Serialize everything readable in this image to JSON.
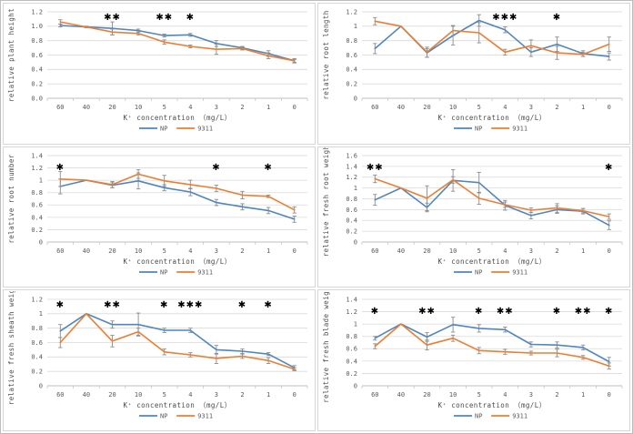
{
  "figure": {
    "x_categories": [
      "60",
      "40",
      "20",
      "10",
      "5",
      "4",
      "3",
      "2",
      "1",
      "0"
    ],
    "xlabel": "K⁺ concentration （mg/L）",
    "legend": [
      {
        "name": "NP",
        "color": "#4e86c0"
      },
      {
        "name": "9311",
        "color": "#ed7d31"
      }
    ],
    "colors": {
      "grid": "#d9d9d9",
      "axis": "#bfbfbf",
      "error": "#8c8c8c",
      "text": "#595959",
      "significance": "#000000"
    }
  },
  "chart_data": [
    {
      "type": "line",
      "ylabel": "relative plant height",
      "ylim": [
        0,
        1.2
      ],
      "ytick_labels": [
        "0.0",
        "0.2",
        "0.4",
        "0.6",
        "0.8",
        "1.0",
        "1.2"
      ],
      "categories": [
        "60",
        "40",
        "20",
        "10",
        "5",
        "4",
        "3",
        "2",
        "1",
        "0"
      ],
      "series": [
        {
          "name": "NP",
          "values": [
            1.01,
            0.99,
            0.97,
            0.94,
            0.87,
            0.88,
            0.76,
            0.7,
            0.62,
            0.52
          ],
          "errors": [
            0.02,
            0.01,
            0.09,
            0.02,
            0.02,
            0.02,
            0.04,
            0.02,
            0.04,
            0.02
          ]
        },
        {
          "name": "9311",
          "values": [
            1.06,
            0.99,
            0.92,
            0.9,
            0.78,
            0.72,
            0.68,
            0.69,
            0.59,
            0.52
          ],
          "errors": [
            0.03,
            0.01,
            0.04,
            0.02,
            0.03,
            0.02,
            0.07,
            0.02,
            0.04,
            0.03
          ]
        }
      ],
      "significance": [
        {
          "category": "20",
          "symbol": "**"
        },
        {
          "category": "5",
          "symbol": "**"
        },
        {
          "category": "4",
          "symbol": "*"
        }
      ]
    },
    {
      "type": "line",
      "ylabel": "relative root length",
      "ylim": [
        0,
        1.2
      ],
      "ytick_labels": [
        "0",
        "0.2",
        "0.4",
        "0.6",
        "0.8",
        "1",
        "1.2"
      ],
      "categories": [
        "60",
        "40",
        "20",
        "10",
        "5",
        "4",
        "3",
        "2",
        "1",
        "0"
      ],
      "series": [
        {
          "name": "NP",
          "values": [
            0.69,
            1.0,
            0.63,
            0.87,
            1.08,
            0.95,
            0.64,
            0.75,
            0.62,
            0.58
          ],
          "errors": [
            0.07,
            0.0,
            0.06,
            0.13,
            0.08,
            0.04,
            0.06,
            0.1,
            0.04,
            0.05
          ]
        },
        {
          "name": "9311",
          "values": [
            1.07,
            1.0,
            0.64,
            0.94,
            0.91,
            0.64,
            0.73,
            0.63,
            0.61,
            0.75
          ],
          "errors": [
            0.05,
            0.0,
            0.07,
            0.07,
            0.14,
            0.04,
            0.08,
            0.09,
            0.03,
            0.1
          ]
        }
      ],
      "significance": [
        {
          "category": "4",
          "symbol": "***"
        },
        {
          "category": "2",
          "symbol": "*"
        }
      ]
    },
    {
      "type": "line",
      "ylabel": "relative root number",
      "ylim": [
        0,
        1.4
      ],
      "ytick_labels": [
        "0",
        "0.2",
        "0.4",
        "0.6",
        "0.8",
        "1",
        "1.2",
        "1.4"
      ],
      "categories": [
        "60",
        "40",
        "20",
        "10",
        "5",
        "4",
        "3",
        "2",
        "1",
        "0"
      ],
      "series": [
        {
          "name": "NP",
          "values": [
            0.9,
            1.0,
            0.92,
            0.99,
            0.88,
            0.81,
            0.64,
            0.57,
            0.51,
            0.37
          ],
          "errors": [
            0.12,
            0.0,
            0.04,
            0.13,
            0.05,
            0.06,
            0.05,
            0.05,
            0.05,
            0.05
          ]
        },
        {
          "name": "9311",
          "values": [
            1.02,
            1.0,
            0.93,
            1.1,
            0.99,
            0.93,
            0.87,
            0.76,
            0.74,
            0.52
          ],
          "errors": [
            0.12,
            0.0,
            0.05,
            0.07,
            0.09,
            0.07,
            0.05,
            0.06,
            0.02,
            0.05
          ]
        }
      ],
      "significance": [
        {
          "category": "60",
          "symbol": "*"
        },
        {
          "category": "3",
          "symbol": "*"
        },
        {
          "category": "1",
          "symbol": "*"
        }
      ]
    },
    {
      "type": "line",
      "ylabel": "relative fresh root weight",
      "ylim": [
        0,
        1.6
      ],
      "ytick_labels": [
        "0",
        "0.2",
        "0.4",
        "0.6",
        "0.8",
        "1",
        "1.2",
        "1.4",
        "1.6"
      ],
      "categories": [
        "60",
        "40",
        "20",
        "10",
        "5",
        "4",
        "3",
        "2",
        "1",
        "0"
      ],
      "series": [
        {
          "name": "NP",
          "values": [
            0.78,
            1.0,
            0.64,
            1.14,
            1.1,
            0.68,
            0.49,
            0.6,
            0.57,
            0.31
          ],
          "errors": [
            0.1,
            0.0,
            0.08,
            0.2,
            0.19,
            0.09,
            0.06,
            0.07,
            0.05,
            0.08
          ]
        },
        {
          "name": "9311",
          "values": [
            1.17,
            1.0,
            0.81,
            1.15,
            0.81,
            0.69,
            0.59,
            0.63,
            0.58,
            0.47
          ],
          "errors": [
            0.07,
            0.0,
            0.23,
            0.06,
            0.11,
            0.05,
            0.04,
            0.08,
            0.04,
            0.05
          ]
        }
      ],
      "significance": [
        {
          "category": "60",
          "symbol": "**"
        },
        {
          "category": "0",
          "symbol": "*"
        }
      ]
    },
    {
      "type": "line",
      "ylabel": "relative fresh sheath weight",
      "ylim": [
        0,
        1.2
      ],
      "ytick_labels": [
        "0",
        "0.2",
        "0.4",
        "0.6",
        "0.8",
        "1",
        "1.2"
      ],
      "categories": [
        "60",
        "40",
        "20",
        "10",
        "5",
        "4",
        "3",
        "2",
        "1",
        "0"
      ],
      "series": [
        {
          "name": "NP",
          "values": [
            0.76,
            1.0,
            0.85,
            0.85,
            0.77,
            0.77,
            0.5,
            0.48,
            0.44,
            0.25
          ],
          "errors": [
            0.09,
            0.0,
            0.05,
            0.16,
            0.03,
            0.03,
            0.06,
            0.03,
            0.02,
            0.03
          ]
        },
        {
          "name": "9311",
          "values": [
            0.6,
            1.0,
            0.62,
            0.75,
            0.47,
            0.43,
            0.38,
            0.41,
            0.35,
            0.23
          ],
          "errors": [
            0.07,
            0.0,
            0.08,
            0.05,
            0.04,
            0.03,
            0.07,
            0.03,
            0.04,
            0.02
          ]
        }
      ],
      "significance": [
        {
          "category": "60",
          "symbol": "*"
        },
        {
          "category": "20",
          "symbol": "**"
        },
        {
          "category": "5",
          "symbol": "*"
        },
        {
          "category": "4",
          "symbol": "***"
        },
        {
          "category": "2",
          "symbol": "*"
        },
        {
          "category": "1",
          "symbol": "*"
        }
      ]
    },
    {
      "type": "line",
      "ylabel": "relative fresh blade weight",
      "ylim": [
        0,
        1.4
      ],
      "ytick_labels": [
        "0",
        "0.2",
        "0.4",
        "0.6",
        "0.8",
        "1",
        "1.2",
        "1.4"
      ],
      "categories": [
        "60",
        "40",
        "20",
        "10",
        "5",
        "4",
        "3",
        "2",
        "1",
        "0"
      ],
      "series": [
        {
          "name": "NP",
          "values": [
            0.77,
            1.0,
            0.79,
            0.99,
            0.93,
            0.91,
            0.67,
            0.66,
            0.62,
            0.39
          ],
          "errors": [
            0.03,
            0.0,
            0.07,
            0.12,
            0.06,
            0.04,
            0.04,
            0.05,
            0.04,
            0.07
          ]
        },
        {
          "name": "9311",
          "values": [
            0.64,
            1.0,
            0.66,
            0.77,
            0.57,
            0.55,
            0.53,
            0.53,
            0.46,
            0.32
          ],
          "errors": [
            0.04,
            0.0,
            0.08,
            0.05,
            0.05,
            0.04,
            0.03,
            0.06,
            0.03,
            0.05
          ]
        }
      ],
      "significance": [
        {
          "category": "60",
          "symbol": "*"
        },
        {
          "category": "20",
          "symbol": "**"
        },
        {
          "category": "5",
          "symbol": "*"
        },
        {
          "category": "4",
          "symbol": "**"
        },
        {
          "category": "2",
          "symbol": "*"
        },
        {
          "category": "1",
          "symbol": "**"
        },
        {
          "category": "0",
          "symbol": "*"
        }
      ]
    }
  ]
}
